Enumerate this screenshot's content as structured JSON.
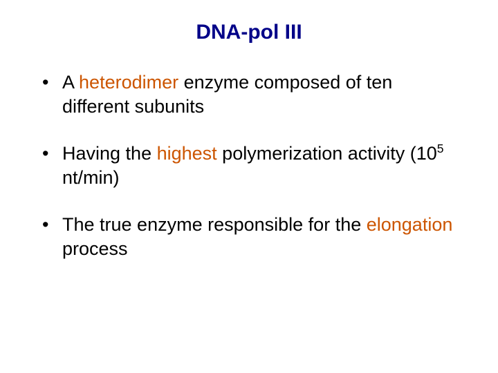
{
  "title": {
    "text": "DNA-pol III",
    "color": "#000088",
    "font_size": 30,
    "font_weight": "bold"
  },
  "bullets": [
    {
      "spans": [
        {
          "text": "A ",
          "color": "#000000"
        },
        {
          "text": "heterodimer",
          "color": "#cc5500"
        },
        {
          "text": " enzyme composed of ten different subunits",
          "color": "#000000"
        }
      ]
    },
    {
      "spans": [
        {
          "text": "Having the ",
          "color": "#000000"
        },
        {
          "text": "highest",
          "color": "#cc5500"
        },
        {
          "text": " polymerization activity (10",
          "color": "#000000"
        },
        {
          "text": "5",
          "color": "#000000",
          "sup": true
        },
        {
          "text": " nt/min)",
          "color": "#000000"
        }
      ]
    },
    {
      "spans": [
        {
          "text": "The true enzyme responsible for the ",
          "color": "#000000"
        },
        {
          "text": "elongation",
          "color": "#cc5500"
        },
        {
          "text": " process",
          "color": "#000000"
        }
      ]
    }
  ],
  "body": {
    "font_size": 27,
    "bullet_spacing": 34,
    "background_color": "#ffffff"
  }
}
